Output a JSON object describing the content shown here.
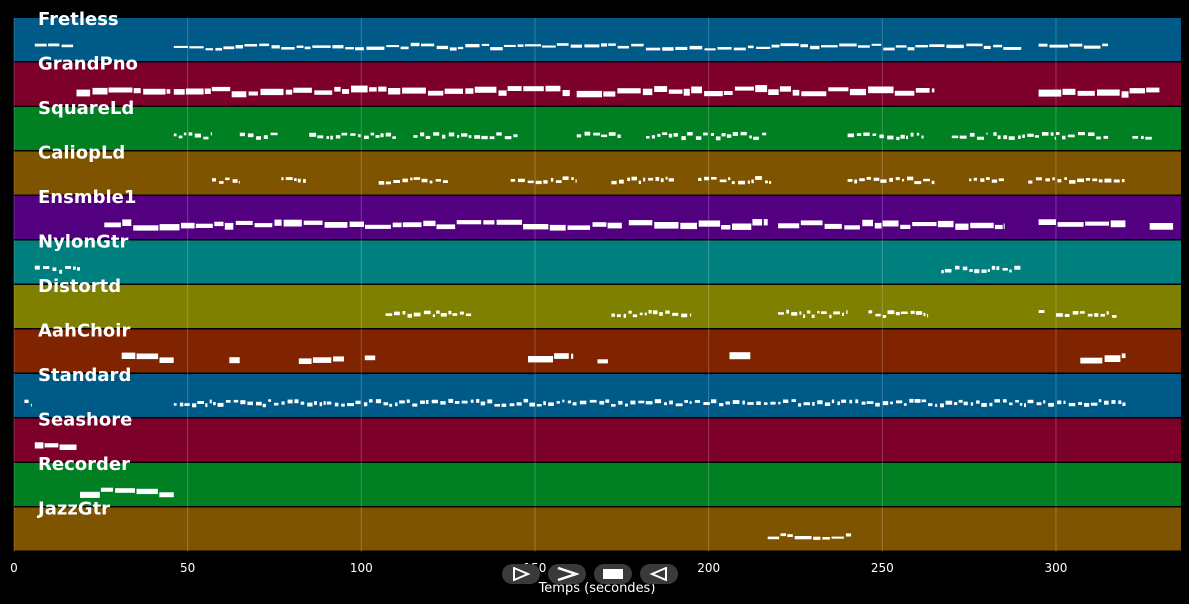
{
  "chart_data": {
    "type": "piano-roll",
    "xlabel": "Temps (secondes)",
    "xlim": [
      0,
      336
    ],
    "xticks": [
      0,
      50,
      100,
      150,
      200,
      250,
      300
    ],
    "grid": true,
    "tracks": [
      {
        "name": "Fretless",
        "color": "#005a87",
        "segments": [
          [
            6,
            17,
            "thin"
          ],
          [
            46,
            290,
            "thin"
          ],
          [
            295,
            315,
            "thin"
          ]
        ]
      },
      {
        "name": "GrandPno",
        "color": "#7d002b",
        "segments": [
          [
            18,
            45,
            "thick"
          ],
          [
            46,
            160,
            "thick"
          ],
          [
            162,
            265,
            "thick"
          ],
          [
            295,
            330,
            "thick"
          ]
        ]
      },
      {
        "name": "SquareLd",
        "color": "#007f23",
        "segments": [
          [
            46,
            57,
            "dots"
          ],
          [
            65,
            76,
            "dots"
          ],
          [
            85,
            110,
            "dots"
          ],
          [
            115,
            145,
            "dots"
          ],
          [
            162,
            175,
            "dots"
          ],
          [
            182,
            217,
            "dots"
          ],
          [
            240,
            262,
            "dots"
          ],
          [
            270,
            280,
            "dots"
          ],
          [
            282,
            300,
            "dots"
          ],
          [
            300,
            315,
            "dots"
          ],
          [
            322,
            328,
            "dots"
          ]
        ]
      },
      {
        "name": "CaliopLd",
        "color": "#7f5400",
        "segments": [
          [
            57,
            65,
            "dots"
          ],
          [
            77,
            84,
            "dots"
          ],
          [
            105,
            125,
            "dots"
          ],
          [
            143,
            162,
            "dots"
          ],
          [
            172,
            190,
            "dots"
          ],
          [
            197,
            218,
            "dots"
          ],
          [
            240,
            265,
            "dots"
          ],
          [
            275,
            285,
            "dots"
          ],
          [
            292,
            320,
            "dots"
          ]
        ]
      },
      {
        "name": "Ensmble1",
        "color": "#52007f",
        "segments": [
          [
            26,
            175,
            "thick"
          ],
          [
            177,
            217,
            "thick"
          ],
          [
            220,
            285,
            "thick"
          ],
          [
            295,
            320,
            "thick"
          ],
          [
            327,
            334,
            "thick"
          ]
        ]
      },
      {
        "name": "NylonGtr",
        "color": "#007f7f",
        "segments": [
          [
            6,
            19,
            "dots"
          ],
          [
            267,
            290,
            "dots"
          ]
        ]
      },
      {
        "name": "Distortd",
        "color": "#7f7f00",
        "segments": [
          [
            107,
            132,
            "dots"
          ],
          [
            172,
            195,
            "dots"
          ],
          [
            220,
            240,
            "dots"
          ],
          [
            246,
            263,
            "dots"
          ],
          [
            295,
            297,
            "dots"
          ],
          [
            300,
            318,
            "dots"
          ]
        ]
      },
      {
        "name": "AahChoir",
        "color": "#7f2300",
        "segments": [
          [
            31,
            46,
            "thick"
          ],
          [
            62,
            65,
            "thick"
          ],
          [
            82,
            95,
            "thick"
          ],
          [
            101,
            104,
            "thick"
          ],
          [
            148,
            161,
            "thick"
          ],
          [
            168,
            171,
            "thick"
          ],
          [
            206,
            212,
            "thick"
          ],
          [
            307,
            320,
            "thick"
          ]
        ]
      },
      {
        "name": "Standard",
        "color": "#005a87",
        "segments": [
          [
            3,
            5,
            "dots"
          ],
          [
            46,
            320,
            "dots"
          ]
        ]
      },
      {
        "name": "Seashore",
        "color": "#7d002b",
        "segments": [
          [
            6,
            18,
            "thick"
          ]
        ]
      },
      {
        "name": "Recorder",
        "color": "#007f23",
        "segments": [
          [
            19,
            46,
            "thick"
          ]
        ]
      },
      {
        "name": "JazzGtr",
        "color": "#7f5400",
        "segments": [
          [
            217,
            241,
            "thin"
          ]
        ]
      }
    ]
  },
  "controls": [
    {
      "name": "play-button",
      "glyph": "▷"
    },
    {
      "name": "forward-button",
      "glyph": "＞"
    },
    {
      "name": "stop-button",
      "glyph": "■"
    },
    {
      "name": "back-button",
      "glyph": "◁"
    }
  ]
}
